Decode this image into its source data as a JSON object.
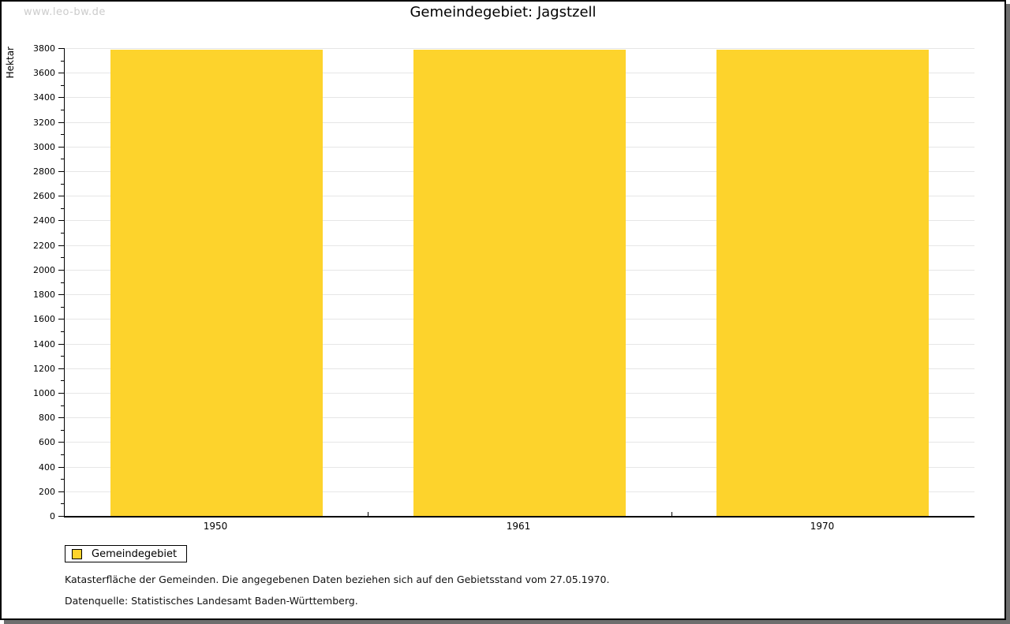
{
  "watermark": "www.leo-bw.de",
  "title": "Gemeindegebiet: Jagstzell",
  "chart_data": {
    "type": "bar",
    "title": "Gemeindegebiet: Jagstzell",
    "categories": [
      "1950",
      "1961",
      "1970"
    ],
    "series": [
      {
        "name": "Gemeindegebiet",
        "values": [
          3790,
          3790,
          3790
        ]
      }
    ],
    "xlabel": "",
    "ylabel": "Hektar",
    "ylim": [
      0,
      3800
    ],
    "y_major_step": 200,
    "y_minor_step": 100,
    "grid": "horizontal-major-only",
    "legend_position": "bottom-left",
    "bar_color": "#fdd32c"
  },
  "legend": {
    "items": [
      {
        "label": "Gemeindegebiet",
        "color": "#fdd32c"
      }
    ]
  },
  "footnotes": {
    "line1": "Katasterfläche der Gemeinden. Die angegebenen Daten beziehen sich auf den Gebietsstand vom 27.05.1970.",
    "line2": "Datenquelle: Statistisches Landesamt Baden-Württemberg."
  },
  "colors": {
    "bar": "#fdd32c",
    "gridline": "#e6e6e6",
    "axis": "#000000",
    "watermark": "#cccccc",
    "frame_shadow": "#6e6e6e",
    "background": "#ffffff"
  }
}
